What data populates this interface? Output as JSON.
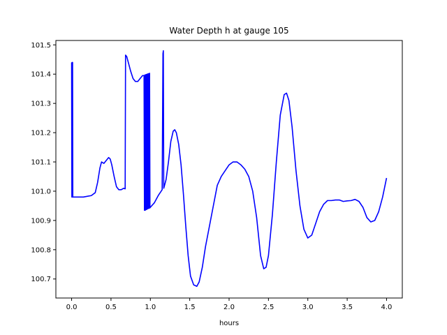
{
  "chart_data": {
    "type": "line",
    "title": "Water Depth h at gauge 105",
    "xlabel": "hours",
    "ylabel": "",
    "xlim": [
      -0.2,
      4.2
    ],
    "ylim": [
      100.635,
      101.515
    ],
    "x_ticks": [
      0.0,
      0.5,
      1.0,
      1.5,
      2.0,
      2.5,
      3.0,
      3.5,
      4.0
    ],
    "x_tick_labels": [
      "0.0",
      "0.5",
      "1.0",
      "1.5",
      "2.0",
      "2.5",
      "3.0",
      "3.5",
      "4.0"
    ],
    "y_ticks": [
      100.7,
      100.8,
      100.9,
      101.0,
      101.1,
      101.2,
      101.3,
      101.4,
      101.5
    ],
    "y_tick_labels": [
      "100.7",
      "100.8",
      "100.9",
      "101.0",
      "101.1",
      "101.2",
      "101.3",
      "101.4",
      "101.5"
    ],
    "grid": false,
    "series": [
      {
        "color": "#0000ff",
        "points": [
          [
            0.0,
            101.44
          ],
          [
            0.003,
            100.98
          ],
          [
            0.006,
            101.44
          ],
          [
            0.009,
            100.98
          ],
          [
            0.012,
            101.44
          ],
          [
            0.015,
            100.98
          ],
          [
            0.05,
            100.98
          ],
          [
            0.15,
            100.98
          ],
          [
            0.25,
            100.985
          ],
          [
            0.3,
            100.995
          ],
          [
            0.33,
            101.03
          ],
          [
            0.36,
            101.08
          ],
          [
            0.38,
            101.1
          ],
          [
            0.41,
            101.095
          ],
          [
            0.44,
            101.105
          ],
          [
            0.47,
            101.115
          ],
          [
            0.49,
            101.11
          ],
          [
            0.51,
            101.09
          ],
          [
            0.54,
            101.05
          ],
          [
            0.57,
            101.015
          ],
          [
            0.6,
            101.005
          ],
          [
            0.63,
            101.005
          ],
          [
            0.66,
            101.01
          ],
          [
            0.68,
            101.008
          ],
          [
            0.685,
            101.465
          ],
          [
            0.7,
            101.46
          ],
          [
            0.72,
            101.44
          ],
          [
            0.75,
            101.41
          ],
          [
            0.78,
            101.385
          ],
          [
            0.81,
            101.375
          ],
          [
            0.84,
            101.375
          ],
          [
            0.87,
            101.385
          ],
          [
            0.9,
            101.395
          ],
          [
            0.92,
            101.395
          ],
          [
            0.925,
            100.935
          ],
          [
            0.93,
            101.397
          ],
          [
            0.935,
            100.935
          ],
          [
            0.94,
            101.398
          ],
          [
            0.945,
            100.937
          ],
          [
            0.95,
            101.399
          ],
          [
            0.955,
            100.938
          ],
          [
            0.96,
            101.4
          ],
          [
            0.965,
            100.94
          ],
          [
            0.97,
            101.401
          ],
          [
            0.975,
            100.941
          ],
          [
            0.98,
            101.402
          ],
          [
            0.985,
            100.942
          ],
          [
            0.99,
            101.403
          ],
          [
            0.995,
            100.943
          ],
          [
            1.0,
            100.945
          ],
          [
            1.05,
            100.96
          ],
          [
            1.1,
            100.985
          ],
          [
            1.15,
            101.005
          ],
          [
            1.16,
            101.47
          ],
          [
            1.165,
            101.48
          ],
          [
            1.17,
            101.01
          ],
          [
            1.2,
            101.04
          ],
          [
            1.23,
            101.1
          ],
          [
            1.26,
            101.17
          ],
          [
            1.29,
            101.205
          ],
          [
            1.31,
            101.21
          ],
          [
            1.33,
            101.2
          ],
          [
            1.36,
            101.16
          ],
          [
            1.39,
            101.09
          ],
          [
            1.42,
            100.99
          ],
          [
            1.45,
            100.88
          ],
          [
            1.48,
            100.78
          ],
          [
            1.51,
            100.71
          ],
          [
            1.55,
            100.68
          ],
          [
            1.59,
            100.675
          ],
          [
            1.62,
            100.69
          ],
          [
            1.66,
            100.74
          ],
          [
            1.7,
            100.81
          ],
          [
            1.75,
            100.88
          ],
          [
            1.8,
            100.95
          ],
          [
            1.85,
            101.02
          ],
          [
            1.9,
            101.05
          ],
          [
            1.95,
            101.07
          ],
          [
            2.0,
            101.09
          ],
          [
            2.05,
            101.1
          ],
          [
            2.1,
            101.1
          ],
          [
            2.15,
            101.09
          ],
          [
            2.2,
            101.075
          ],
          [
            2.25,
            101.05
          ],
          [
            2.3,
            101.0
          ],
          [
            2.35,
            100.91
          ],
          [
            2.4,
            100.78
          ],
          [
            2.44,
            100.735
          ],
          [
            2.47,
            100.74
          ],
          [
            2.5,
            100.78
          ],
          [
            2.55,
            100.92
          ],
          [
            2.6,
            101.1
          ],
          [
            2.65,
            101.26
          ],
          [
            2.7,
            101.33
          ],
          [
            2.73,
            101.335
          ],
          [
            2.76,
            101.31
          ],
          [
            2.8,
            101.22
          ],
          [
            2.85,
            101.07
          ],
          [
            2.9,
            100.95
          ],
          [
            2.95,
            100.87
          ],
          [
            3.0,
            100.84
          ],
          [
            3.05,
            100.85
          ],
          [
            3.1,
            100.89
          ],
          [
            3.15,
            100.93
          ],
          [
            3.2,
            100.955
          ],
          [
            3.25,
            100.968
          ],
          [
            3.3,
            100.968
          ],
          [
            3.35,
            100.97
          ],
          [
            3.4,
            100.97
          ],
          [
            3.45,
            100.965
          ],
          [
            3.5,
            100.967
          ],
          [
            3.55,
            100.968
          ],
          [
            3.6,
            100.972
          ],
          [
            3.65,
            100.965
          ],
          [
            3.7,
            100.945
          ],
          [
            3.75,
            100.91
          ],
          [
            3.8,
            100.895
          ],
          [
            3.85,
            100.9
          ],
          [
            3.9,
            100.93
          ],
          [
            3.95,
            100.98
          ],
          [
            4.0,
            101.045
          ]
        ]
      }
    ]
  }
}
